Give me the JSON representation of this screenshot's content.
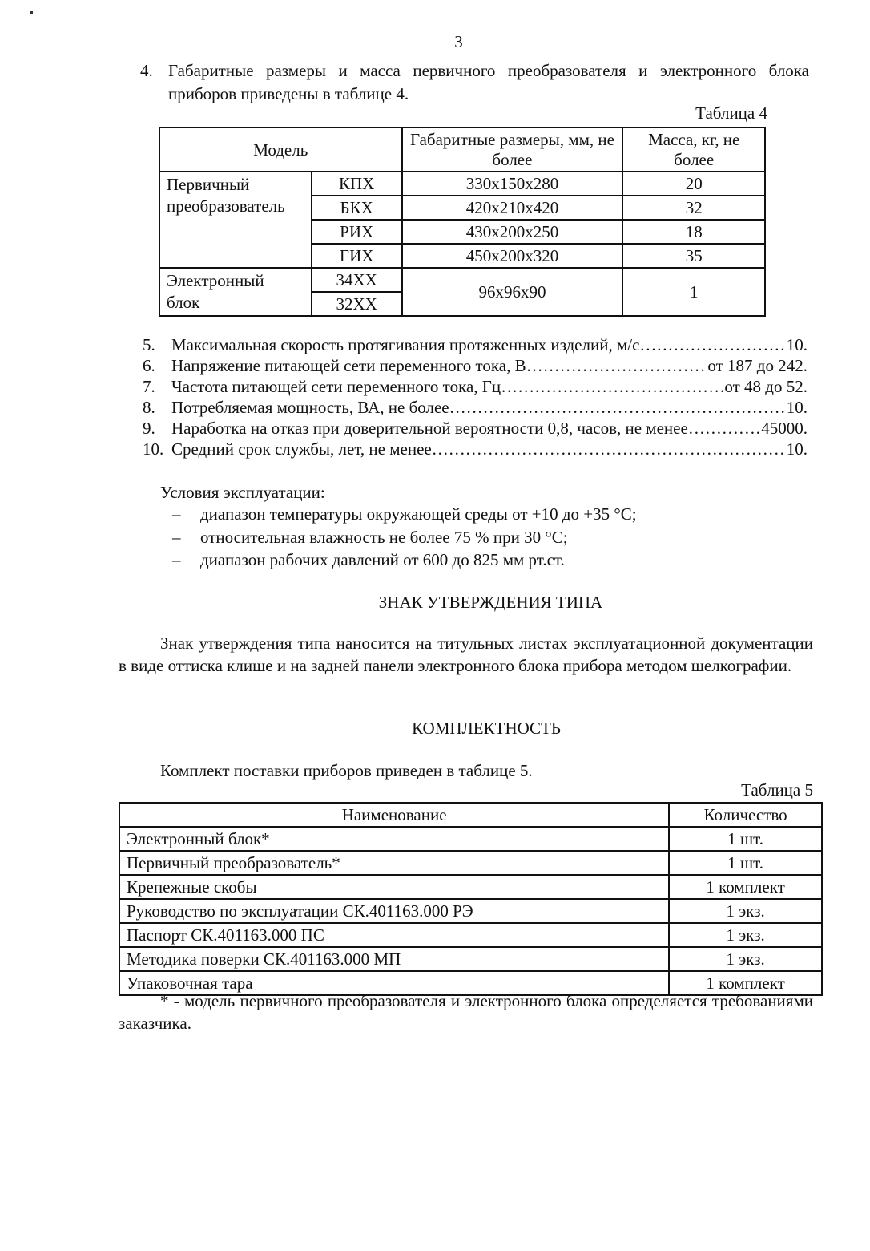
{
  "page_number": "3",
  "item4": {
    "num": "4.",
    "line1": "Габаритные размеры и масса первичного преобразователя и электронного блока",
    "line2": "приборов приведены в таблице 4."
  },
  "table4": {
    "caption": "Таблица 4",
    "headers": {
      "model": "Модель",
      "dims": "Габаритные размеры, мм, не более",
      "mass": "Масса, кг, не более"
    },
    "group1": {
      "label": "Первичный преобразователь",
      "rows": [
        {
          "model": "КПХ",
          "dims": "330x150x280",
          "mass": "20"
        },
        {
          "model": "БКХ",
          "dims": "420x210x420",
          "mass": "32"
        },
        {
          "model": "РИХ",
          "dims": "430x200x250",
          "mass": "18"
        },
        {
          "model": "ГИХ",
          "dims": "450x200x320",
          "mass": "35"
        }
      ]
    },
    "group2": {
      "label": "Электронный блок",
      "models": [
        "34XX",
        "32XX"
      ],
      "dims": "96x96x90",
      "mass": "1"
    }
  },
  "specs": [
    {
      "num": "5.",
      "label": "Максимальная скорость протягивания протяженных изделий, м/с",
      "value": "10."
    },
    {
      "num": "6.",
      "label": "Напряжение питающей сети переменного тока, В",
      "value": "от 187 до 242."
    },
    {
      "num": "7.",
      "label": "Частота питающей сети переменного тока, Гц",
      "value": "от 48 до 52."
    },
    {
      "num": "8.",
      "label": "Потребляемая мощность, ВА, не более",
      "value": "10."
    },
    {
      "num": "9.",
      "label": "Наработка на отказ при доверительной вероятности 0,8, часов, не менее",
      "value": "45000."
    },
    {
      "num": "10.",
      "label": "Средний срок службы, лет, не менее",
      "value": "10."
    }
  ],
  "conditions": {
    "title": "Условия эксплуатации:",
    "items": [
      "диапазон температуры окружающей среды от +10 до +35 °С;",
      "относительная влажность не более 75 % при 30 °С;",
      "диапазон рабочих давлений от 600 до 825 мм рт.ст."
    ]
  },
  "sign": {
    "heading": "ЗНАК УТВЕРЖДЕНИЯ ТИПА",
    "text": "Знак утверждения типа наносится на титульных листах эксплуатационной документации в виде оттиска клише и на задней панели электронного блока прибора методом шелкографии."
  },
  "completeness": {
    "heading": "КОМПЛЕКТНОСТЬ",
    "intro": "Комплект поставки приборов приведен в таблице 5.",
    "caption": "Таблица 5",
    "headers": {
      "name": "Наименование",
      "qty": "Количество"
    },
    "rows": [
      {
        "name": "Электронный блок*",
        "qty": "1 шт."
      },
      {
        "name": "Первичный преобразователь*",
        "qty": "1 шт."
      },
      {
        "name": "Крепежные скобы",
        "qty": "1 комплект"
      },
      {
        "name": "Руководство по эксплуатации СК.401163.000 РЭ",
        "qty": "1 экз."
      },
      {
        "name": "Паспорт СК.401163.000 ПС",
        "qty": "1 экз."
      },
      {
        "name": "Методика поверки СК.401163.000 МП",
        "qty": "1 экз."
      },
      {
        "name": "Упаковочная тара",
        "qty": "1 комплект"
      }
    ],
    "footnote": "* - модель первичного преобразователя и электронного блока определяется требованиями заказчика."
  }
}
